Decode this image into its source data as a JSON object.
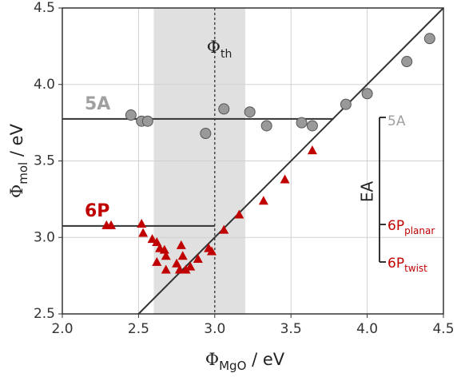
{
  "chart_data": {
    "type": "scatter",
    "x_label": [
      "Φ",
      "MgO",
      " / eV"
    ],
    "y_label": [
      "Φ",
      "mol",
      " / eV"
    ],
    "xlim": [
      2.0,
      4.5
    ],
    "ylim": [
      2.5,
      4.5
    ],
    "xticks": [
      {
        "value": 2.0,
        "label": "2.0"
      },
      2.5,
      {
        "value": 3.0,
        "label": "3.0"
      },
      3.5,
      {
        "value": 4.0,
        "label": "4.0"
      },
      4.5
    ],
    "yticks": [
      2.5,
      {
        "value": 3.0,
        "label": "3.0"
      },
      3.5,
      {
        "value": 4.0,
        "label": "4.0"
      },
      4.5
    ],
    "grid": true,
    "shaded_span": [
      2.6,
      3.2
    ],
    "threshold": {
      "x": 3.0,
      "label": [
        "Φ",
        "th"
      ]
    },
    "identity_line": [
      2.5,
      4.5
    ],
    "reference_lines": [
      {
        "label": "5A",
        "y": 3.775,
        "x_end": 3.78,
        "color": "#a0a0a0"
      },
      {
        "label": "6P",
        "y": 3.075,
        "x_end": 3.0,
        "color": "#c00000"
      }
    ],
    "series": [
      {
        "name": "5A",
        "marker": "circle",
        "color": "#999999",
        "x": [
          2.45,
          2.52,
          2.56,
          2.94,
          3.06,
          3.23,
          3.34,
          3.57,
          3.64,
          3.86,
          4.0,
          4.26,
          4.41
        ],
        "values": [
          3.8,
          3.76,
          3.76,
          3.68,
          3.84,
          3.82,
          3.73,
          3.75,
          3.73,
          3.87,
          3.94,
          4.15,
          4.3
        ]
      },
      {
        "name": "6P",
        "marker": "triangle",
        "color": "#c00000",
        "x": [
          2.29,
          2.32,
          2.52,
          2.53,
          2.59,
          2.62,
          2.64,
          2.67,
          2.68,
          2.62,
          2.68,
          2.75,
          2.78,
          2.79,
          2.77,
          2.81,
          2.84,
          2.89,
          2.96,
          2.98,
          3.06,
          3.16,
          3.32,
          3.46,
          3.64
        ],
        "values": [
          3.08,
          3.08,
          3.09,
          3.03,
          2.99,
          2.97,
          2.93,
          2.92,
          2.88,
          2.84,
          2.79,
          2.83,
          2.95,
          2.88,
          2.79,
          2.79,
          2.81,
          2.86,
          2.93,
          2.91,
          3.05,
          3.15,
          3.24,
          3.38,
          3.57
        ]
      }
    ],
    "ea_bracket": {
      "label": "EA",
      "levels": [
        {
          "main": "5A",
          "sub": "",
          "color": "#a0a0a0"
        },
        {
          "main": "6P",
          "sub": "planar",
          "color": "#c00000"
        },
        {
          "main": "6P",
          "sub": "twist",
          "color": "#c00000"
        }
      ]
    }
  }
}
